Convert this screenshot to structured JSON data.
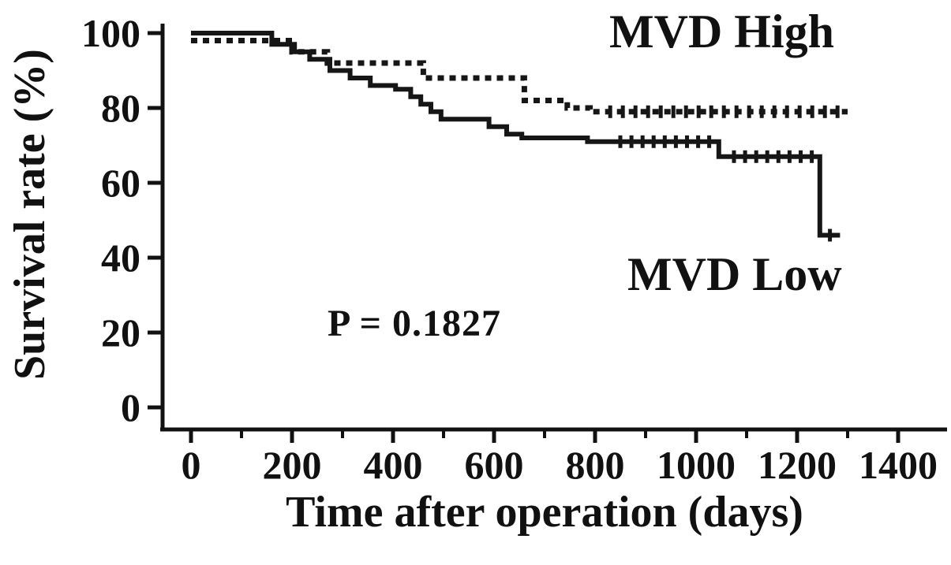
{
  "chart_data": {
    "type": "line",
    "chart_style": "kaplan-meier-step",
    "title": "",
    "xlabel": "Time after operation (days)",
    "ylabel": "Survival rate (%)",
    "xlim": [
      0,
      1450
    ],
    "ylim": [
      0,
      100
    ],
    "x_ticks": [
      0,
      200,
      400,
      600,
      800,
      1000,
      1200,
      1400
    ],
    "x_minor_ticks": [
      100,
      300,
      500,
      700,
      900,
      1100,
      1300
    ],
    "y_ticks": [
      0,
      20,
      40,
      60,
      80,
      100
    ],
    "grid": false,
    "legend_position": "annotated-on-plot",
    "p_value": "P = 0.1827",
    "axis_color": "#111111",
    "series": [
      {
        "name": "MVD High",
        "line_style": "dotted",
        "color": "#161616",
        "points": [
          [
            0,
            98
          ],
          [
            200,
            95
          ],
          [
            270,
            92
          ],
          [
            460,
            88
          ],
          [
            660,
            82
          ],
          [
            745,
            80
          ],
          [
            790,
            79
          ],
          [
            1300,
            79
          ]
        ],
        "censor_ticks": [
          [
            830,
            79
          ],
          [
            855,
            79
          ],
          [
            880,
            79
          ],
          [
            905,
            79
          ],
          [
            930,
            79
          ],
          [
            955,
            79
          ],
          [
            980,
            79
          ],
          [
            1005,
            79
          ],
          [
            1030,
            79
          ],
          [
            1055,
            79
          ],
          [
            1080,
            79
          ],
          [
            1105,
            79
          ],
          [
            1130,
            79
          ],
          [
            1155,
            79
          ],
          [
            1180,
            79
          ],
          [
            1205,
            79
          ],
          [
            1230,
            79
          ],
          [
            1255,
            79
          ],
          [
            1280,
            79
          ]
        ]
      },
      {
        "name": "MVD Low",
        "line_style": "solid",
        "color": "#161616",
        "points": [
          [
            0,
            100
          ],
          [
            160,
            97
          ],
          [
            205,
            95
          ],
          [
            235,
            93
          ],
          [
            275,
            90
          ],
          [
            315,
            88
          ],
          [
            355,
            86
          ],
          [
            405,
            85
          ],
          [
            435,
            83
          ],
          [
            455,
            81
          ],
          [
            475,
            79
          ],
          [
            495,
            77
          ],
          [
            590,
            75
          ],
          [
            625,
            73
          ],
          [
            655,
            72
          ],
          [
            785,
            71
          ],
          [
            1045,
            67
          ],
          [
            1245,
            46
          ],
          [
            1285,
            46
          ]
        ],
        "censor_ticks": [
          [
            850,
            71
          ],
          [
            872,
            71
          ],
          [
            894,
            71
          ],
          [
            916,
            71
          ],
          [
            938,
            71
          ],
          [
            960,
            71
          ],
          [
            982,
            71
          ],
          [
            1004,
            71
          ],
          [
            1026,
            71
          ],
          [
            1075,
            67
          ],
          [
            1097,
            67
          ],
          [
            1119,
            67
          ],
          [
            1141,
            67
          ],
          [
            1163,
            67
          ],
          [
            1185,
            67
          ],
          [
            1207,
            67
          ],
          [
            1229,
            67
          ],
          [
            1265,
            46
          ]
        ]
      }
    ]
  }
}
